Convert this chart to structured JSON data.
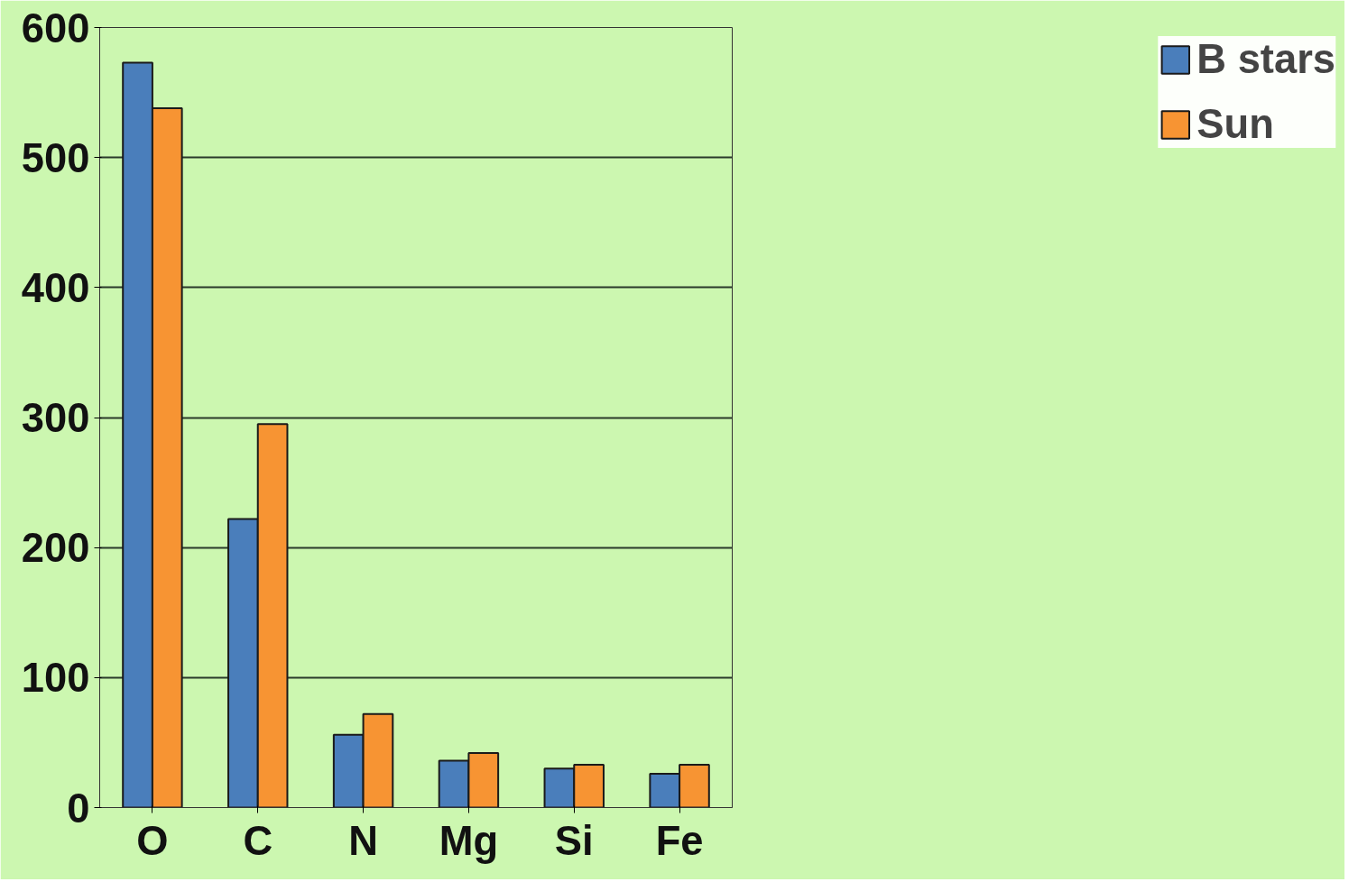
{
  "chart_data": {
    "type": "bar",
    "categories": [
      "O",
      "C",
      "N",
      "Mg",
      "Si",
      "Fe"
    ],
    "series": [
      {
        "name": "B stars",
        "color": "#4a7ebb",
        "values": [
          573,
          222,
          56,
          36,
          30,
          26
        ]
      },
      {
        "name": "Sun",
        "color": "#f79433",
        "values": [
          538,
          295,
          72,
          42,
          33,
          33
        ]
      }
    ],
    "ylim": [
      0,
      600
    ],
    "yticks": [
      0,
      100,
      200,
      300,
      400,
      500,
      600
    ],
    "grid": "y",
    "legend": "right"
  }
}
